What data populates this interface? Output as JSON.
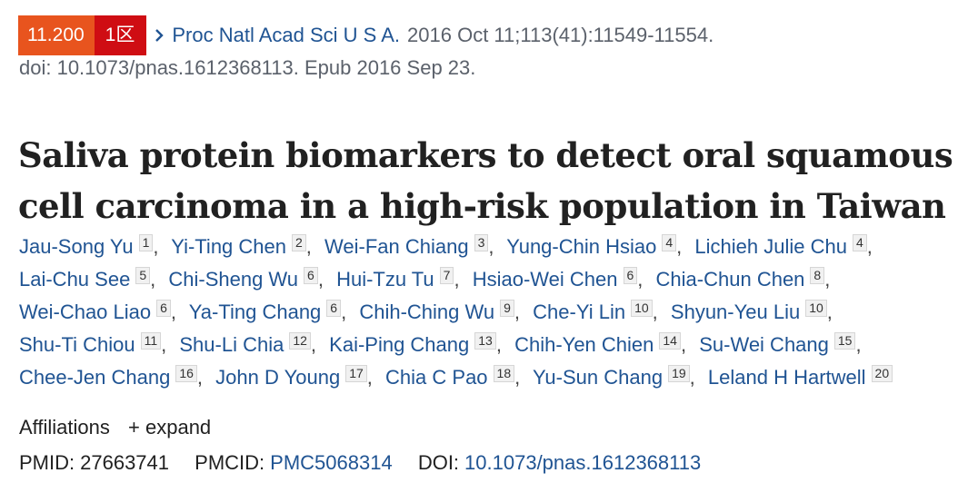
{
  "header": {
    "impact_factor": "11.200",
    "quartile": "1区",
    "journal": "Proc Natl Acad Sci U S A.",
    "citation": "2016 Oct 11;113(41):11549-11554.",
    "doi_line": "doi: 10.1073/pnas.1612368113. Epub 2016 Sep 23."
  },
  "article": {
    "title": "Saliva protein biomarkers to detect oral squamous cell carcinoma in a high-risk population in Taiwan"
  },
  "authors": [
    {
      "name": "Jau-Song Yu",
      "aff": "1"
    },
    {
      "name": "Yi-Ting Chen",
      "aff": "2"
    },
    {
      "name": "Wei-Fan Chiang",
      "aff": "3"
    },
    {
      "name": "Yung-Chin Hsiao",
      "aff": "4"
    },
    {
      "name": "Lichieh Julie Chu",
      "aff": "4"
    },
    {
      "name": "Lai-Chu See",
      "aff": "5"
    },
    {
      "name": "Chi-Sheng Wu",
      "aff": "6"
    },
    {
      "name": "Hui-Tzu Tu",
      "aff": "7"
    },
    {
      "name": "Hsiao-Wei Chen",
      "aff": "6"
    },
    {
      "name": "Chia-Chun Chen",
      "aff": "8"
    },
    {
      "name": "Wei-Chao Liao",
      "aff": "6"
    },
    {
      "name": "Ya-Ting Chang",
      "aff": "6"
    },
    {
      "name": "Chih-Ching Wu",
      "aff": "9"
    },
    {
      "name": "Che-Yi Lin",
      "aff": "10"
    },
    {
      "name": "Shyun-Yeu Liu",
      "aff": "10"
    },
    {
      "name": "Shu-Ti Chiou",
      "aff": "11"
    },
    {
      "name": "Shu-Li Chia",
      "aff": "12"
    },
    {
      "name": "Kai-Ping Chang",
      "aff": "13"
    },
    {
      "name": "Chih-Yen Chien",
      "aff": "14"
    },
    {
      "name": "Su-Wei Chang",
      "aff": "15"
    },
    {
      "name": "Chee-Jen Chang",
      "aff": "16"
    },
    {
      "name": "John D Young",
      "aff": "17"
    },
    {
      "name": "Chia C Pao",
      "aff": "18"
    },
    {
      "name": "Yu-Sun Chang",
      "aff": "19"
    },
    {
      "name": "Leland H Hartwell",
      "aff": "20"
    }
  ],
  "affiliations": {
    "label": "Affiliations",
    "expand_icon": "+",
    "expand_label": "expand"
  },
  "identifiers": {
    "pmid_label": "PMID:",
    "pmid": "27663741",
    "pmcid_label": "PMCID:",
    "pmcid": "PMC5068314",
    "doi_label": "DOI:",
    "doi": "10.1073/pnas.1612368113"
  },
  "colors": {
    "link": "#205493",
    "if_badge": "#e8541e",
    "quartile_badge": "#cf0d13"
  }
}
